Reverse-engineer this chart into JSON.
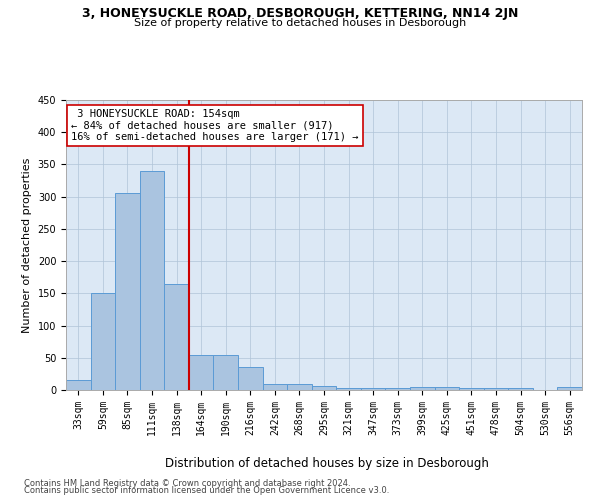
{
  "title": "3, HONEYSUCKLE ROAD, DESBOROUGH, KETTERING, NN14 2JN",
  "subtitle": "Size of property relative to detached houses in Desborough",
  "xlabel": "Distribution of detached houses by size in Desborough",
  "ylabel": "Number of detached properties",
  "footnote1": "Contains HM Land Registry data © Crown copyright and database right 2024.",
  "footnote2": "Contains public sector information licensed under the Open Government Licence v3.0.",
  "bin_labels": [
    "33sqm",
    "59sqm",
    "85sqm",
    "111sqm",
    "138sqm",
    "164sqm",
    "190sqm",
    "216sqm",
    "242sqm",
    "268sqm",
    "295sqm",
    "321sqm",
    "347sqm",
    "373sqm",
    "399sqm",
    "425sqm",
    "451sqm",
    "478sqm",
    "504sqm",
    "530sqm",
    "556sqm"
  ],
  "bar_values": [
    15,
    150,
    305,
    340,
    165,
    55,
    55,
    35,
    10,
    10,
    6,
    3,
    3,
    3,
    5,
    5,
    3,
    3,
    3,
    0,
    5
  ],
  "bar_color": "#aac4e0",
  "bar_edgecolor": "#5b9bd5",
  "vline_x_index": 4.5,
  "vline_color": "#cc0000",
  "property_label": "3 HONEYSUCKLE ROAD: 154sqm",
  "pct_smaller": 84,
  "n_smaller": 917,
  "pct_larger": 16,
  "n_larger": 171,
  "annotation_box_edgecolor": "#cc0000",
  "background_color": "#ffffff",
  "axes_facecolor": "#dce8f5",
  "grid_color": "#b0c4d8",
  "ylim": [
    0,
    450
  ],
  "yticks": [
    0,
    50,
    100,
    150,
    200,
    250,
    300,
    350,
    400,
    450
  ],
  "title_fontsize": 9.0,
  "subtitle_fontsize": 8.0,
  "ylabel_fontsize": 8.0,
  "xlabel_fontsize": 8.5,
  "tick_fontsize": 7.0,
  "footnote_fontsize": 6.0
}
